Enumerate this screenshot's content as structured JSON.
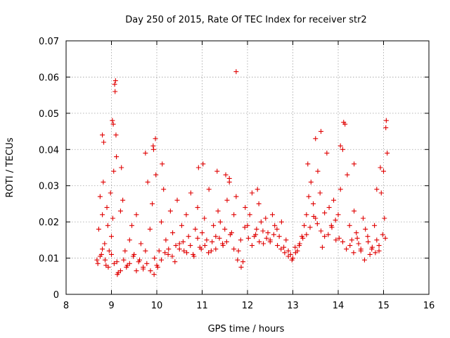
{
  "chart_data": {
    "type": "scatter",
    "title": "Day 250 of 2015, Rate Of TEC Index for receiver str2",
    "xlabel": "GPS time / hours",
    "ylabel": "ROTI / TECUs",
    "xlim": [
      8,
      16
    ],
    "ylim": [
      0,
      0.07
    ],
    "xticks": [
      "8",
      "9",
      "10",
      "11",
      "12",
      "13",
      "14",
      "15",
      "16"
    ],
    "yticks": [
      "0",
      "0.01",
      "0.02",
      "0.03",
      "0.04",
      "0.05",
      "0.06",
      "0.07"
    ],
    "grid": true,
    "marker": "+",
    "series_color": "#e00000",
    "series": [
      {
        "name": "str2",
        "x": [
          8.68,
          8.72,
          8.75,
          8.78,
          8.8,
          8.82,
          8.85,
          8.88,
          8.9,
          8.92,
          8.95,
          8.98,
          9.0,
          9.03,
          9.05,
          9.07,
          9.08,
          9.09,
          9.1,
          9.11,
          9.12,
          9.15,
          9.2,
          9.25,
          9.3,
          9.35,
          9.4,
          9.45,
          9.5,
          9.55,
          9.6,
          9.65,
          9.7,
          9.75,
          9.8,
          9.85,
          9.9,
          9.92,
          9.95,
          9.98,
          10.0,
          10.05,
          10.1,
          10.15,
          10.2,
          10.25,
          10.3,
          10.35,
          10.4,
          10.45,
          10.5,
          10.55,
          10.6,
          10.65,
          10.7,
          10.75,
          10.8,
          10.85,
          10.9,
          10.95,
          11.0,
          11.05,
          11.1,
          11.15,
          11.2,
          11.25,
          11.3,
          11.35,
          11.4,
          11.45,
          11.5,
          11.55,
          11.6,
          11.65,
          11.7,
          11.75,
          11.8,
          11.85,
          11.9,
          11.95,
          12.0,
          12.05,
          12.1,
          12.15,
          12.2,
          12.25,
          12.3,
          12.35,
          12.4,
          12.45,
          12.5,
          12.55,
          12.6,
          12.65,
          12.7,
          12.75,
          12.8,
          12.85,
          12.9,
          12.95,
          13.0,
          13.05,
          13.1,
          13.15,
          13.2,
          13.25,
          13.3,
          13.35,
          13.4,
          13.45,
          13.5,
          13.55,
          13.6,
          13.65,
          13.7,
          13.75,
          13.8,
          13.85,
          13.9,
          13.95,
          14.0,
          14.05,
          14.1,
          14.15,
          14.2,
          14.25,
          14.3,
          14.35,
          14.4,
          14.45,
          14.5,
          14.55,
          14.6,
          14.65,
          14.7,
          14.75,
          14.8,
          14.85,
          14.9,
          14.95,
          15.0,
          15.02,
          15.05,
          15.08,
          8.7,
          8.75,
          8.8,
          8.86,
          8.93,
          9.0,
          9.06,
          9.13,
          9.2,
          9.27,
          9.33,
          9.4,
          9.48,
          9.55,
          9.62,
          9.7,
          9.78,
          9.86,
          9.94,
          10.02,
          10.1,
          10.18,
          10.26,
          10.34,
          10.42,
          10.5,
          10.58,
          10.66,
          10.74,
          10.82,
          10.9,
          10.98,
          11.06,
          11.14,
          11.22,
          11.3,
          11.38,
          11.46,
          11.54,
          11.62,
          11.7,
          11.78,
          11.86,
          11.94,
          12.02,
          12.1,
          12.18,
          12.26,
          12.34,
          12.42,
          12.5,
          12.58,
          12.66,
          12.74,
          12.82,
          12.9,
          12.98,
          13.06,
          13.14,
          13.22,
          13.3,
          13.38,
          13.46,
          13.54,
          13.62,
          13.7,
          13.78,
          13.86,
          13.94,
          14.02,
          14.1,
          14.18,
          14.26,
          14.34,
          14.42,
          14.5,
          14.58,
          14.66,
          14.74,
          14.82,
          14.9,
          14.98,
          15.04,
          8.8,
          8.83,
          9.02,
          9.04,
          9.22,
          9.75,
          9.93,
          9.97,
          10.12,
          10.92,
          11.02,
          11.33,
          11.52,
          11.6,
          11.75,
          12.22,
          13.33,
          13.5,
          13.62,
          14.05,
          14.12,
          14.35,
          14.85,
          14.93,
          15.06
        ],
        "y": [
          0.0095,
          0.018,
          0.027,
          0.011,
          0.022,
          0.031,
          0.014,
          0.008,
          0.024,
          0.019,
          0.012,
          0.028,
          0.016,
          0.021,
          0.034,
          0.058,
          0.056,
          0.059,
          0.044,
          0.038,
          0.009,
          0.006,
          0.023,
          0.026,
          0.012,
          0.008,
          0.015,
          0.019,
          0.011,
          0.022,
          0.009,
          0.014,
          0.007,
          0.012,
          0.031,
          0.018,
          0.025,
          0.041,
          0.01,
          0.033,
          0.008,
          0.012,
          0.02,
          0.029,
          0.015,
          0.011,
          0.023,
          0.017,
          0.009,
          0.026,
          0.014,
          0.019,
          0.012,
          0.022,
          0.016,
          0.028,
          0.011,
          0.018,
          0.024,
          0.013,
          0.017,
          0.021,
          0.015,
          0.029,
          0.012,
          0.019,
          0.016,
          0.023,
          0.02,
          0.014,
          0.018,
          0.026,
          0.031,
          0.017,
          0.022,
          0.027,
          0.012,
          0.015,
          0.009,
          0.024,
          0.019,
          0.022,
          0.028,
          0.016,
          0.018,
          0.025,
          0.02,
          0.014,
          0.021,
          0.017,
          0.015,
          0.022,
          0.019,
          0.018,
          0.016,
          0.02,
          0.013,
          0.015,
          0.012,
          0.011,
          0.01,
          0.013,
          0.012,
          0.014,
          0.016,
          0.019,
          0.022,
          0.027,
          0.031,
          0.025,
          0.021,
          0.034,
          0.028,
          0.013,
          0.016,
          0.039,
          0.024,
          0.019,
          0.026,
          0.015,
          0.022,
          0.029,
          0.04,
          0.047,
          0.033,
          0.019,
          0.015,
          0.023,
          0.017,
          0.014,
          0.012,
          0.021,
          0.018,
          0.016,
          0.011,
          0.013,
          0.019,
          0.015,
          0.012,
          0.028,
          0.034,
          0.021,
          0.046,
          0.039,
          0.0085,
          0.0105,
          0.0125,
          0.0095,
          0.0075,
          0.011,
          0.0085,
          0.0055,
          0.0065,
          0.0095,
          0.0075,
          0.0085,
          0.0105,
          0.0065,
          0.0095,
          0.0075,
          0.0085,
          0.0065,
          0.0055,
          0.0075,
          0.0095,
          0.0115,
          0.0125,
          0.0105,
          0.0135,
          0.0125,
          0.0145,
          0.0115,
          0.0135,
          0.0105,
          0.0155,
          0.0125,
          0.0135,
          0.0115,
          0.0145,
          0.0125,
          0.0155,
          0.0135,
          0.0145,
          0.0165,
          0.0125,
          0.0095,
          0.0075,
          0.0185,
          0.0155,
          0.0135,
          0.0165,
          0.0145,
          0.0175,
          0.0155,
          0.0145,
          0.0165,
          0.0135,
          0.0125,
          0.0115,
          0.0105,
          0.0095,
          0.0115,
          0.0135,
          0.0155,
          0.0165,
          0.0185,
          0.0215,
          0.0195,
          0.0175,
          0.0225,
          0.0165,
          0.0185,
          0.0205,
          0.0155,
          0.0145,
          0.0125,
          0.0135,
          0.0115,
          0.0155,
          0.0125,
          0.0095,
          0.0145,
          0.0125,
          0.0115,
          0.0135,
          0.0165,
          0.0155,
          0.044,
          0.042,
          0.048,
          0.047,
          0.035,
          0.039,
          0.04,
          0.043,
          0.036,
          0.035,
          0.036,
          0.034,
          0.033,
          0.032,
          0.0615,
          0.029,
          0.036,
          0.043,
          0.045,
          0.041,
          0.0475,
          0.036,
          0.029,
          0.035,
          0.048
        ]
      }
    ]
  }
}
